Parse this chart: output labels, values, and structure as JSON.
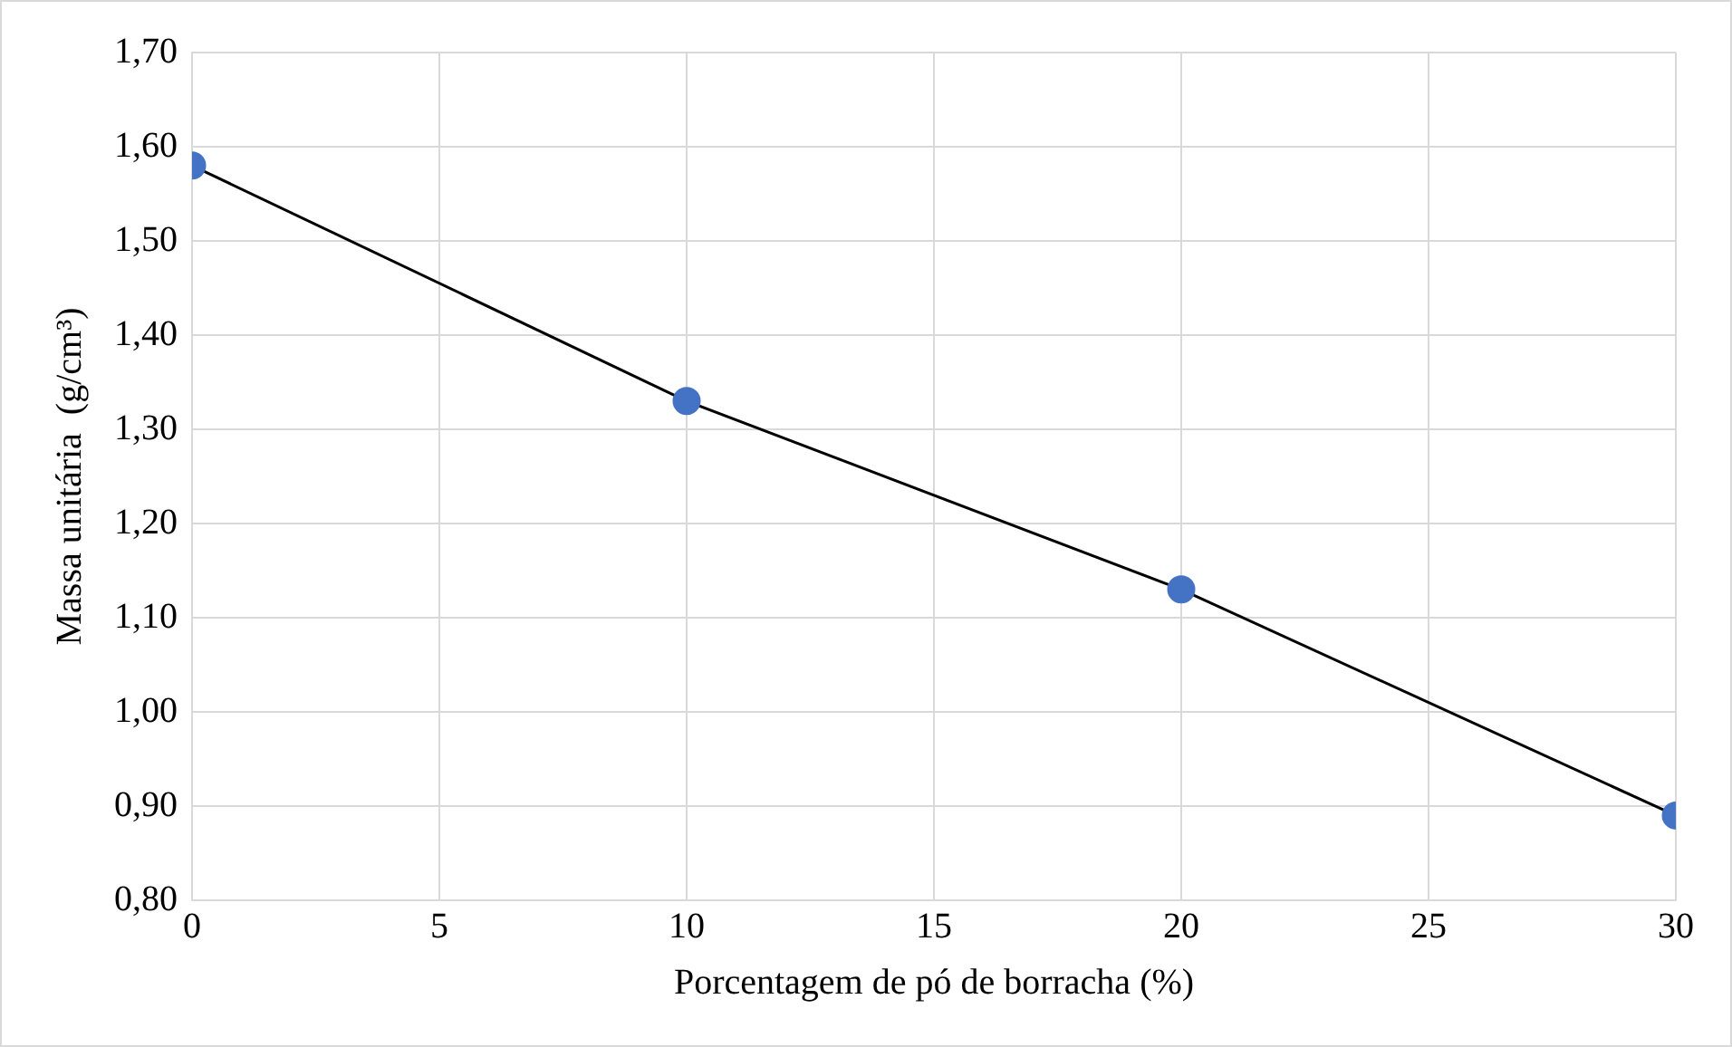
{
  "chart_data": {
    "type": "line",
    "xlabel": "Porcentagem de pó de borracha (%)",
    "ylabel": "Massa unitária  (g/cm³)",
    "x": [
      0,
      10,
      20,
      30
    ],
    "series": [
      {
        "color": "#4472c4",
        "values": [
          1.58,
          1.33,
          1.13,
          0.89
        ]
      }
    ],
    "xlim": [
      0,
      30
    ],
    "xticks": [
      0,
      5,
      10,
      15,
      20,
      25,
      30
    ],
    "ylim": [
      0.8,
      1.7
    ],
    "yticks": [
      {
        "value": 0.8,
        "label": "0,80"
      },
      {
        "value": 0.9,
        "label": "0,90"
      },
      {
        "value": 1.0,
        "label": "1,00"
      },
      {
        "value": 1.1,
        "label": "1,10"
      },
      {
        "value": 1.2,
        "label": "1,20"
      },
      {
        "value": 1.3,
        "label": "1,30"
      },
      {
        "value": 1.4,
        "label": "1,40"
      },
      {
        "value": 1.5,
        "label": "1,50"
      },
      {
        "value": 1.6,
        "label": "1,60"
      },
      {
        "value": 1.7,
        "label": "1,70"
      }
    ],
    "grid": true,
    "legend": false,
    "marker": "circle",
    "line_style": "solid"
  }
}
